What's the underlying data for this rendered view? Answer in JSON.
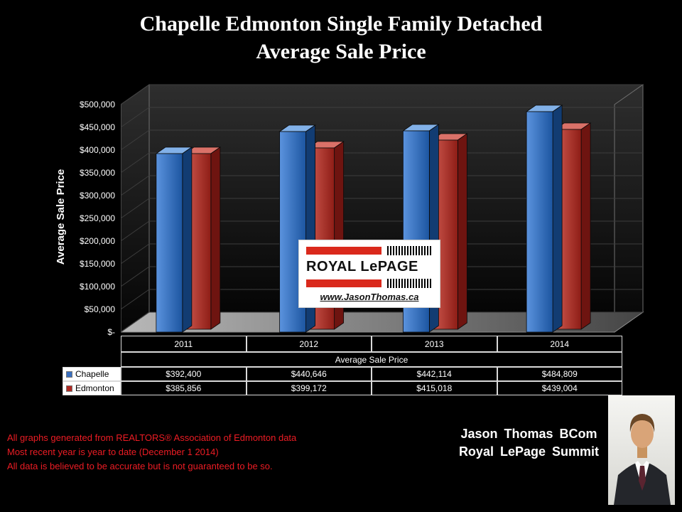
{
  "title": {
    "line1": "Chapelle Edmonton Single Family Detached",
    "line2": "Average Sale Price"
  },
  "chart_data": {
    "type": "bar",
    "title": "Chapelle Edmonton Single Family Detached Average Sale Price",
    "categories": [
      "2011",
      "2012",
      "2013",
      "2014"
    ],
    "series": [
      {
        "name": "Chapelle",
        "values": [
          392400,
          440646,
          442114,
          484809
        ],
        "formatted": [
          "$392,400",
          "$440,646",
          "$442,114",
          "$484,809"
        ],
        "colors": {
          "light": "#5b93de",
          "dark": "#1c55a0",
          "top": "#82b1e8",
          "side": "#123c72",
          "key": "#3a6fbf"
        }
      },
      {
        "name": "Edmonton",
        "values": [
          385856,
          399172,
          415018,
          439004
        ],
        "formatted": [
          "$385,856",
          "$399,172",
          "$415,018",
          "$439,004"
        ],
        "colors": {
          "light": "#d05a50",
          "dark": "#8e1d16",
          "top": "#da7168",
          "side": "#6e1410",
          "key": "#b02a23"
        }
      }
    ],
    "ylabel": "Average Sale Price",
    "xlabel": "",
    "ylim": [
      0,
      500000
    ],
    "ytick_step": 50000,
    "yticks": [
      "$500,000",
      "$450,000",
      "$400,000",
      "$350,000",
      "$300,000",
      "$250,000",
      "$200,000",
      "$150,000",
      "$100,000",
      "$50,000",
      "$-"
    ],
    "table_header": "Average Sale Price",
    "legend_position": "table-left",
    "grid": true,
    "style": "3d-bars-on-black"
  },
  "logo": {
    "brand": "ROYAL LePAGE",
    "website": "www.JasonThomas.ca",
    "red": "#da291c"
  },
  "footer": {
    "disclaimer": [
      "All graphs generated from REALTORS® Association of Edmonton data",
      "Most recent year is year to date (December 1 2014)",
      "All data is believed to be accurate but is not guaranteed to be so."
    ],
    "agent_line1": "Jason Thomas BCom",
    "agent_line2": "Royal LePage Summit"
  }
}
